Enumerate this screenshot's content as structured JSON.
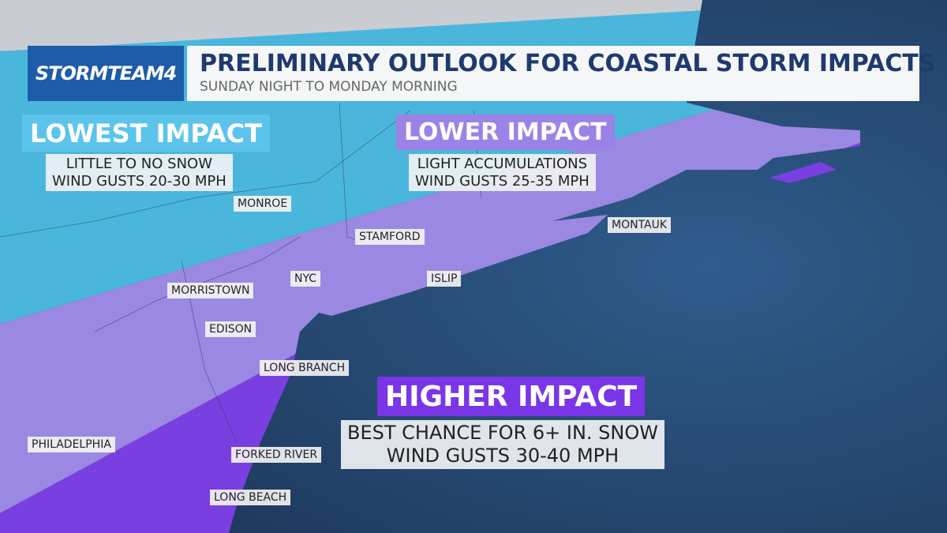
{
  "header": {
    "brand": "STORMTEAM4",
    "title": "PRELIMINARY OUTLOOK FOR COASTAL STORM IMPACTS",
    "subtitle": "SUNDAY NIGHT TO MONDAY MORNING"
  },
  "zones": [
    {
      "title": "LOWEST IMPACT",
      "lines": [
        "LITTLE TO NO SNOW",
        "WIND GUSTS 20-30 MPH"
      ]
    },
    {
      "title": "LOWER IMPACT",
      "lines": [
        "LIGHT ACCUMULATIONS",
        "WIND GUSTS 25-35 MPH"
      ]
    },
    {
      "title": "HIGHER IMPACT",
      "lines": [
        "BEST CHANCE FOR 6+ IN. SNOW",
        "WIND GUSTS 30-40 MPH"
      ]
    }
  ],
  "cities": [
    "MONROE",
    "STAMFORD",
    "MONTAUK",
    "NYC",
    "ISLIP",
    "MORRISTOWN",
    "EDISON",
    "LONG BRANCH",
    "PHILADELPHIA",
    "FORKED RIVER",
    "LONG BEACH"
  ]
}
